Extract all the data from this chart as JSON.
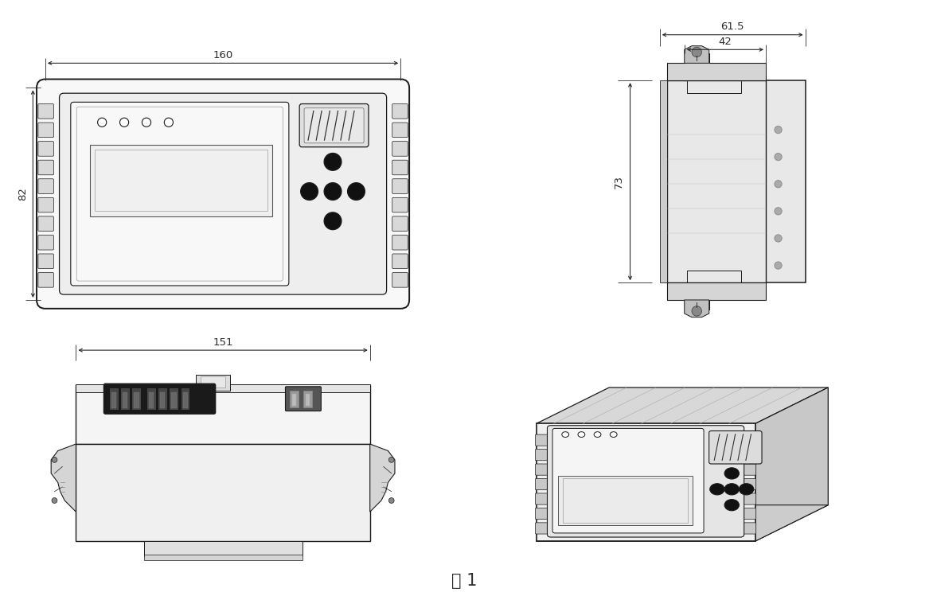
{
  "bg_color": "#ffffff",
  "line_color": "#1a1a1a",
  "dim_color": "#2a2a2a",
  "fill_body": "#f5f5f5",
  "fill_panel": "#eeeeee",
  "fill_dark": "#222222",
  "fill_mid": "#cccccc",
  "fill_light": "#e8e8e8",
  "caption": "图 1",
  "caption_fontsize": 15,
  "dim_fontsize": 9.5,
  "front_dim_w": "160",
  "front_dim_h": "82",
  "side_dim_outer": "61.5",
  "side_dim_inner": "42",
  "side_dim_h": "73",
  "bottom_dim_w": "151"
}
